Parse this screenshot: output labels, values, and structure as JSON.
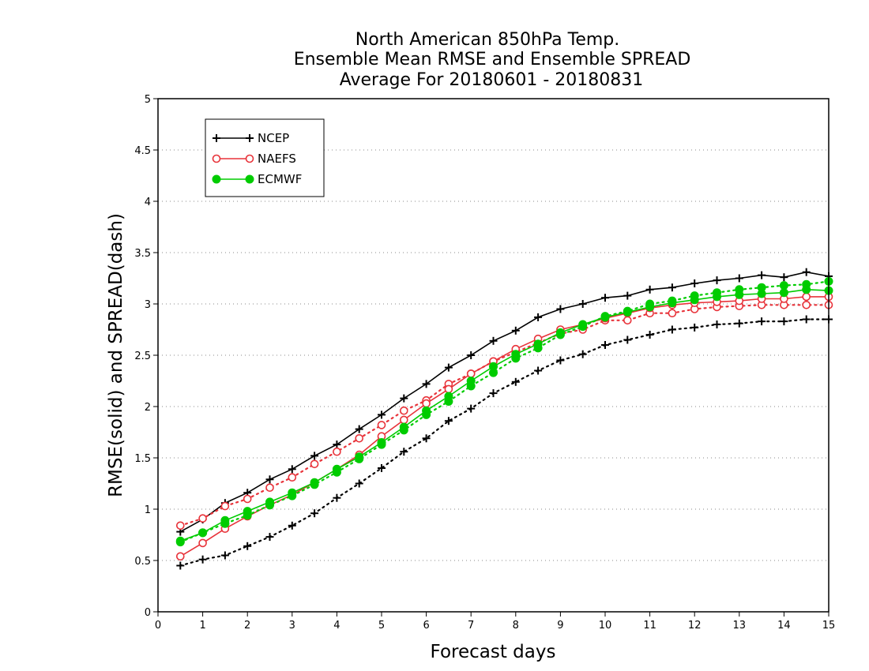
{
  "chart_data": {
    "type": "line",
    "title_lines": [
      "North American 850hPa Temp.",
      "Ensemble Mean RMSE and Ensemble SPREAD",
      "Average For 20180601 - 20180831"
    ],
    "xlabel": "Forecast days",
    "ylabel": "RMSE(solid) and SPREAD(dash)",
    "xlim": [
      0,
      15
    ],
    "ylim": [
      0,
      5
    ],
    "xticks": [
      "0",
      "1",
      "2",
      "3",
      "4",
      "5",
      "6",
      "7",
      "8",
      "9",
      "10",
      "11",
      "12",
      "13",
      "14",
      "15"
    ],
    "yticks": [
      "0",
      "0.5",
      "1",
      "1.5",
      "2",
      "2.5",
      "3",
      "3.5",
      "4",
      "4.5",
      "5"
    ],
    "grid": "horizontal dotted",
    "legend_position": "top-left",
    "x": [
      0.5,
      1,
      1.5,
      2,
      2.5,
      3,
      3.5,
      4,
      4.5,
      5,
      5.5,
      6,
      6.5,
      7,
      7.5,
      8,
      8.5,
      9,
      9.5,
      10,
      10.5,
      11,
      11.5,
      12,
      12.5,
      13,
      13.5,
      14,
      14.5,
      15
    ],
    "series": [
      {
        "name": "NCEP",
        "color": "#000000",
        "marker": "plus",
        "rmse": [
          0.78,
          0.9,
          1.06,
          1.16,
          1.29,
          1.39,
          1.52,
          1.63,
          1.78,
          1.92,
          2.08,
          2.22,
          2.38,
          2.5,
          2.64,
          2.74,
          2.87,
          2.95,
          3.0,
          3.06,
          3.08,
          3.14,
          3.16,
          3.2,
          3.23,
          3.25,
          3.28,
          3.26,
          3.31,
          3.27
        ],
        "spread": [
          0.45,
          0.51,
          0.55,
          0.64,
          0.73,
          0.84,
          0.96,
          1.11,
          1.25,
          1.4,
          1.56,
          1.69,
          1.86,
          1.98,
          2.13,
          2.24,
          2.35,
          2.45,
          2.51,
          2.6,
          2.65,
          2.7,
          2.75,
          2.77,
          2.8,
          2.81,
          2.83,
          2.83,
          2.85,
          2.85
        ]
      },
      {
        "name": "NAEFS",
        "color": "#e8333a",
        "marker": "open-circle",
        "rmse": [
          0.54,
          0.67,
          0.81,
          0.93,
          1.04,
          1.14,
          1.26,
          1.39,
          1.53,
          1.71,
          1.87,
          2.03,
          2.17,
          2.32,
          2.44,
          2.56,
          2.66,
          2.75,
          2.8,
          2.86,
          2.91,
          2.96,
          2.99,
          3.01,
          3.02,
          3.03,
          3.05,
          3.05,
          3.07,
          3.07
        ],
        "spread": [
          0.84,
          0.91,
          1.03,
          1.1,
          1.21,
          1.31,
          1.44,
          1.56,
          1.69,
          1.82,
          1.96,
          2.06,
          2.22,
          2.32,
          2.44,
          2.53,
          2.62,
          2.71,
          2.75,
          2.84,
          2.84,
          2.91,
          2.91,
          2.95,
          2.97,
          2.98,
          2.99,
          2.99,
          2.99,
          2.99
        ]
      },
      {
        "name": "ECMWF",
        "color": "#00cc00",
        "marker": "filled-circle",
        "rmse": [
          0.69,
          0.77,
          0.89,
          0.98,
          1.07,
          1.16,
          1.26,
          1.39,
          1.51,
          1.65,
          1.8,
          1.96,
          2.1,
          2.25,
          2.39,
          2.51,
          2.61,
          2.72,
          2.8,
          2.87,
          2.92,
          2.97,
          3.01,
          3.04,
          3.07,
          3.09,
          3.1,
          3.11,
          3.14,
          3.13
        ],
        "spread": [
          0.68,
          0.77,
          0.86,
          0.94,
          1.04,
          1.13,
          1.24,
          1.36,
          1.49,
          1.63,
          1.77,
          1.92,
          2.05,
          2.2,
          2.33,
          2.47,
          2.57,
          2.7,
          2.78,
          2.88,
          2.93,
          3.0,
          3.03,
          3.08,
          3.11,
          3.14,
          3.16,
          3.18,
          3.19,
          3.22
        ]
      }
    ]
  }
}
